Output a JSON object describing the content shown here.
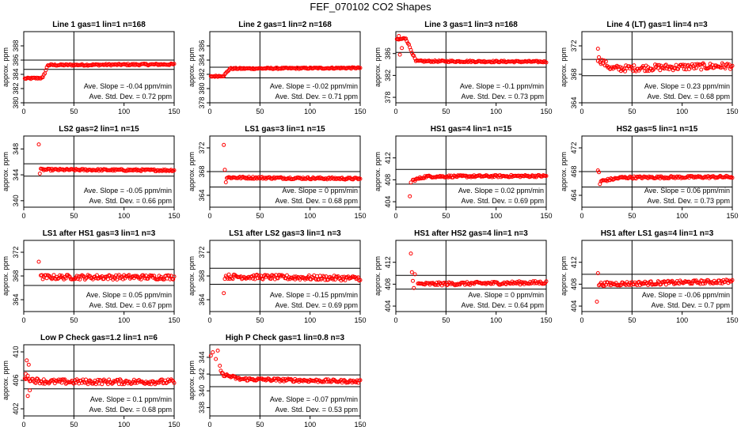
{
  "title": "FEF_070102  CO2 Shapes",
  "chart_data": [
    {
      "type": "scatter",
      "title": "Line 1 gas=1 lin=1 n=168",
      "ylabel": "approx. ppm",
      "xlim": [
        0,
        150
      ],
      "xticks": [
        0,
        50,
        100,
        150
      ],
      "ylim": [
        380,
        390
      ],
      "yticks": [
        380,
        382,
        384,
        386,
        388
      ],
      "hlines": [
        384.7,
        386.0
      ],
      "vline": 50,
      "slope": "Ave. Slope =  -0.04  ppm/min",
      "stddev": "Ave. Std. Dev. =  0.72  ppm",
      "shape": {
        "x_start": 1,
        "segments": [
          {
            "x": 1,
            "y": 383.4
          },
          {
            "x": 19,
            "y": 383.5
          },
          {
            "x": 24,
            "y": 385.3
          },
          {
            "x": 150,
            "y": 385.4
          }
        ],
        "noise": 0.12,
        "step": 1
      }
    },
    {
      "type": "scatter",
      "title": "Line 2 gas=1 lin=2 n=168",
      "ylabel": "approx. ppm",
      "xlim": [
        0,
        150
      ],
      "xticks": [
        0,
        50,
        100,
        150
      ],
      "ylim": [
        378,
        388
      ],
      "yticks": [
        378,
        380,
        382,
        384,
        386
      ],
      "hlines": [
        381.5,
        383.0
      ],
      "vline": 50,
      "slope": "Ave. Slope =  -0.02  ppm/min",
      "stddev": "Ave. Std. Dev. =  0.71  ppm",
      "shape": {
        "x_start": 1,
        "segments": [
          {
            "x": 1,
            "y": 381.7
          },
          {
            "x": 14,
            "y": 381.8
          },
          {
            "x": 20,
            "y": 382.8
          },
          {
            "x": 150,
            "y": 382.9
          }
        ],
        "noise": 0.1,
        "step": 1
      }
    },
    {
      "type": "scatter",
      "title": "Line 3 gas=1 lin=3 n=168",
      "ylabel": "approx. ppm",
      "xlim": [
        0,
        150
      ],
      "xticks": [
        0,
        50,
        100,
        150
      ],
      "ylim": [
        377,
        390
      ],
      "yticks": [
        378,
        382,
        386
      ],
      "hlines": [
        383.5,
        386.2
      ],
      "vline": 50,
      "slope": "Ave. Slope =  -0.1  ppm/min",
      "stddev": "Ave. Std. Dev. =  0.73  ppm",
      "shape": {
        "x_start": 1,
        "segments": [
          {
            "x": 1,
            "y": 388.5
          },
          {
            "x": 10,
            "y": 388.8
          },
          {
            "x": 20,
            "y": 384.6
          },
          {
            "x": 150,
            "y": 384.5
          }
        ],
        "noise": 0.15,
        "step": 1
      },
      "extra": [
        {
          "x": 4,
          "y": 385.8
        },
        {
          "x": 6,
          "y": 387.0
        },
        {
          "x": 3,
          "y": 389.2
        }
      ]
    },
    {
      "type": "scatter",
      "title": "Line 4 (LT) gas=1 lin=4 n=3",
      "ylabel": "approx. ppm",
      "xlim": [
        0,
        150
      ],
      "xticks": [
        0,
        50,
        100,
        150
      ],
      "ylim": [
        364,
        374
      ],
      "yticks": [
        364,
        368,
        372
      ],
      "hlines": [
        367.8,
        370.1
      ],
      "vline": 50,
      "slope": "Ave. Slope =  0.23  ppm/min",
      "stddev": "Ave. Std. Dev. =  0.68  ppm",
      "shape": {
        "x_start": 16,
        "segments": [
          {
            "x": 16,
            "y": 370.2
          },
          {
            "x": 30,
            "y": 368.8
          },
          {
            "x": 150,
            "y": 369.2
          }
        ],
        "noise": 0.45,
        "step": 1
      },
      "extra": [
        {
          "x": 16,
          "y": 371.6
        }
      ]
    },
    {
      "type": "scatter",
      "title": "LS2 gas=2 lin=1 n=15",
      "ylabel": "approx. ppm",
      "xlim": [
        0,
        150
      ],
      "xticks": [
        0,
        50,
        100,
        150
      ],
      "ylim": [
        339,
        350
      ],
      "yticks": [
        340,
        344,
        348
      ],
      "hlines": [
        343.8,
        345.7
      ],
      "vline": 50,
      "slope": "Ave. Slope =  -0.05  ppm/min",
      "stddev": "Ave. Std. Dev. =  0.66  ppm",
      "shape": {
        "x_start": 17,
        "segments": [
          {
            "x": 17,
            "y": 344.8
          },
          {
            "x": 150,
            "y": 344.7
          }
        ],
        "noise": 0.15,
        "step": 1
      },
      "extra": [
        {
          "x": 15,
          "y": 348.7
        },
        {
          "x": 16,
          "y": 344.2
        }
      ]
    },
    {
      "type": "scatter",
      "title": "LS1 gas=3 lin=1 n=15",
      "ylabel": "approx. ppm",
      "xlim": [
        0,
        150
      ],
      "xticks": [
        0,
        50,
        100,
        150
      ],
      "ylim": [
        362,
        374
      ],
      "yticks": [
        364,
        368,
        372
      ],
      "hlines": [
        365.4,
        368.0
      ],
      "vline": 50,
      "slope": "Ave. Slope =  0  ppm/min",
      "stddev": "Ave. Std. Dev. =  0.68  ppm",
      "shape": {
        "x_start": 17,
        "segments": [
          {
            "x": 17,
            "y": 367.0
          },
          {
            "x": 150,
            "y": 366.8
          }
        ],
        "noise": 0.18,
        "step": 1
      },
      "extra": [
        {
          "x": 14,
          "y": 372.5
        },
        {
          "x": 15,
          "y": 368.3
        },
        {
          "x": 16,
          "y": 366.2
        }
      ]
    },
    {
      "type": "scatter",
      "title": "HS1 gas=4 lin=1 n=15",
      "ylabel": "approx. ppm",
      "xlim": [
        0,
        150
      ],
      "xticks": [
        0,
        50,
        100,
        150
      ],
      "ylim": [
        403,
        416
      ],
      "yticks": [
        404,
        408,
        412
      ],
      "hlines": [
        407.2,
        409.9
      ],
      "vline": 50,
      "slope": "Ave. Slope =  0.02  ppm/min",
      "stddev": "Ave. Std. Dev. =  0.69  ppm",
      "shape": {
        "x_start": 17,
        "segments": [
          {
            "x": 17,
            "y": 407.9
          },
          {
            "x": 30,
            "y": 408.6
          },
          {
            "x": 150,
            "y": 408.7
          }
        ],
        "noise": 0.2,
        "step": 1
      },
      "extra": [
        {
          "x": 14,
          "y": 405.0
        },
        {
          "x": 15,
          "y": 407.5
        }
      ]
    },
    {
      "type": "scatter",
      "title": "HS2 gas=5 lin=1 n=15",
      "ylabel": "approx. ppm",
      "xlim": [
        0,
        150
      ],
      "xticks": [
        0,
        50,
        100,
        150
      ],
      "ylim": [
        462,
        474
      ],
      "yticks": [
        464,
        468,
        472
      ],
      "hlines": [
        465.4,
        468.0
      ],
      "vline": 50,
      "slope": "Ave. Slope =  0.06  ppm/min",
      "stddev": "Ave. Std. Dev. =  0.73  ppm",
      "shape": {
        "x_start": 19,
        "segments": [
          {
            "x": 19,
            "y": 466.4
          },
          {
            "x": 40,
            "y": 467.0
          },
          {
            "x": 150,
            "y": 467.1
          }
        ],
        "noise": 0.2,
        "step": 1
      },
      "extra": [
        {
          "x": 16,
          "y": 468.2
        },
        {
          "x": 17,
          "y": 467.9
        },
        {
          "x": 18,
          "y": 465.9
        }
      ]
    },
    {
      "type": "scatter",
      "title": "LS1 after HS1 gas=3 lin=1 n=3",
      "ylabel": "approx. ppm",
      "xlim": [
        0,
        150
      ],
      "xticks": [
        0,
        50,
        100,
        150
      ],
      "ylim": [
        362,
        374
      ],
      "yticks": [
        364,
        368,
        372
      ],
      "hlines": [
        366.4,
        369.1
      ],
      "vline": 50,
      "slope": "Ave. Slope =  0.05  ppm/min",
      "stddev": "Ave. Std. Dev. =  0.67  ppm",
      "shape": {
        "x_start": 17,
        "segments": [
          {
            "x": 17,
            "y": 367.8
          },
          {
            "x": 150,
            "y": 367.8
          }
        ],
        "noise": 0.4,
        "step": 1
      },
      "extra": [
        {
          "x": 15,
          "y": 370.4
        }
      ]
    },
    {
      "type": "scatter",
      "title": "LS1 after LS2 gas=3 lin=1 n=3",
      "ylabel": "approx. ppm",
      "xlim": [
        0,
        150
      ],
      "xticks": [
        0,
        50,
        100,
        150
      ],
      "ylim": [
        362,
        374
      ],
      "yticks": [
        364,
        368,
        372
      ],
      "hlines": [
        366.6,
        369.3
      ],
      "vline": 50,
      "slope": "Ave. Slope =  -0.15  ppm/min",
      "stddev": "Ave. Std. Dev. =  0.69  ppm",
      "shape": {
        "x_start": 15,
        "segments": [
          {
            "x": 15,
            "y": 367.9
          },
          {
            "x": 150,
            "y": 367.6
          }
        ],
        "noise": 0.4,
        "step": 1
      },
      "extra": [
        {
          "x": 14,
          "y": 365.1
        }
      ]
    },
    {
      "type": "scatter",
      "title": "HS1 after HS2 gas=4 lin=1 n=3",
      "ylabel": "approx. ppm",
      "xlim": [
        0,
        150
      ],
      "xticks": [
        0,
        50,
        100,
        150
      ],
      "ylim": [
        403,
        416
      ],
      "yticks": [
        404,
        408,
        412
      ],
      "hlines": [
        407.1,
        409.6
      ],
      "vline": 50,
      "slope": "Ave. Slope =  0  ppm/min",
      "stddev": "Ave. Std. Dev. =  0.64  ppm",
      "shape": {
        "x_start": 22,
        "segments": [
          {
            "x": 22,
            "y": 408.0
          },
          {
            "x": 150,
            "y": 408.3
          }
        ],
        "noise": 0.3,
        "step": 1
      },
      "extra": [
        {
          "x": 15,
          "y": 413.6
        },
        {
          "x": 16,
          "y": 410.2
        },
        {
          "x": 17,
          "y": 408.6
        },
        {
          "x": 18,
          "y": 407.3
        },
        {
          "x": 19,
          "y": 409.8
        }
      ]
    },
    {
      "type": "scatter",
      "title": "HS1 after LS1 gas=4 lin=1 n=3",
      "ylabel": "approx. ppm",
      "xlim": [
        0,
        150
      ],
      "xticks": [
        0,
        50,
        100,
        150
      ],
      "ylim": [
        403,
        416
      ],
      "yticks": [
        404,
        408,
        412
      ],
      "hlines": [
        407.3,
        409.8
      ],
      "vline": 50,
      "slope": "Ave. Slope =  -0.06  ppm/min",
      "stddev": "Ave. Std. Dev. =  0.7  ppm",
      "shape": {
        "x_start": 17,
        "segments": [
          {
            "x": 17,
            "y": 408.0
          },
          {
            "x": 150,
            "y": 408.5
          }
        ],
        "noise": 0.35,
        "step": 1
      },
      "extra": [
        {
          "x": 15,
          "y": 404.8
        },
        {
          "x": 16,
          "y": 410.0
        }
      ]
    },
    {
      "type": "scatter",
      "title": "Low P Check gas=1.2 lin=1 n=6",
      "ylabel": "approx. ppm",
      "xlim": [
        0,
        150
      ],
      "xticks": [
        0,
        50,
        100,
        150
      ],
      "ylim": [
        401,
        411
      ],
      "yticks": [
        402,
        406,
        410
      ],
      "hlines": [
        404.8,
        407.3
      ],
      "vline": 50,
      "slope": "Ave. Slope =  0.1  ppm/min",
      "stddev": "Ave. Std. Dev. =  0.68  ppm",
      "shape": {
        "x_start": 1,
        "segments": [
          {
            "x": 1,
            "y": 406.5
          },
          {
            "x": 10,
            "y": 406.0
          },
          {
            "x": 25,
            "y": 405.8
          },
          {
            "x": 150,
            "y": 405.8
          }
        ],
        "noise": 0.35,
        "step": 1
      },
      "extra": [
        {
          "x": 3,
          "y": 408.8
        },
        {
          "x": 5,
          "y": 408.2
        },
        {
          "x": 4,
          "y": 403.8
        },
        {
          "x": 6,
          "y": 404.6
        },
        {
          "x": 2,
          "y": 406.9
        }
      ]
    },
    {
      "type": "scatter",
      "title": "High P Check gas=1 lin=0.8 n=3",
      "ylabel": "approx. ppm",
      "xlim": [
        0,
        150
      ],
      "xticks": [
        0,
        50,
        100,
        150
      ],
      "ylim": [
        337,
        345.5
      ],
      "yticks": [
        338,
        340,
        342,
        344
      ],
      "hlines": [
        340.5,
        341.9
      ],
      "vline": 50,
      "slope": "Ave. Slope =  -0.07  ppm/min",
      "stddev": "Ave. Std. Dev. =  0.53  ppm",
      "shape": {
        "x_start": 12,
        "segments": [
          {
            "x": 12,
            "y": 342.0
          },
          {
            "x": 30,
            "y": 341.4
          },
          {
            "x": 150,
            "y": 341.1
          }
        ],
        "noise": 0.18,
        "step": 1
      },
      "extra": [
        {
          "x": 1,
          "y": 344.2
        },
        {
          "x": 3,
          "y": 344.6
        },
        {
          "x": 8,
          "y": 344.8
        },
        {
          "x": 10,
          "y": 343.0
        },
        {
          "x": 11,
          "y": 342.4
        },
        {
          "x": 6,
          "y": 343.8
        }
      ]
    }
  ]
}
